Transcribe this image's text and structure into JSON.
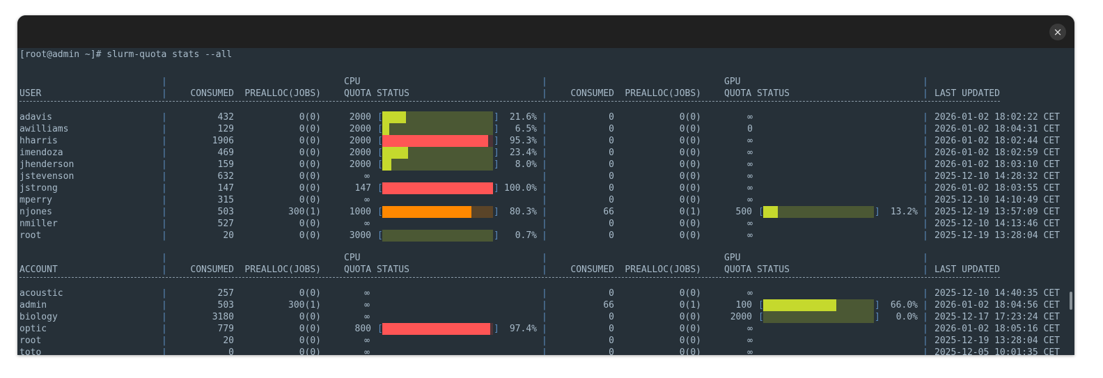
{
  "window": {
    "close_icon": "close-icon",
    "close_label": "×"
  },
  "prompt": "[root@admin ~]# slurm-quota stats --all",
  "colors": {
    "background": "#263038",
    "text": "#a9bccb",
    "pipe": "#5b8bbd",
    "ok_fill": "#c5d92d",
    "ok_empty": "#4b5834",
    "crit_fill": "#ff5555",
    "crit_empty": "#4e3438",
    "warn_fill": "#ff8800",
    "warn_empty": "#5a4428"
  },
  "headers": {
    "cpu": "CPU",
    "gpu": "GPU",
    "consumed": "CONSUMED",
    "prealloc": "PREALLOC(JOBS)",
    "quota_status": "QUOTA STATUS",
    "last_updated": "LAST UPDATED",
    "pipe": "|"
  },
  "sections": [
    {
      "title": "USER",
      "rows": [
        {
          "name": "adavis",
          "cpu_consumed": "432",
          "cpu_prealloc": "0(0)",
          "cpu_quota": "2000",
          "cpu_pct": "21.6%",
          "cpu_level": "ok",
          "gpu_consumed": "0",
          "gpu_prealloc": "0(0)",
          "gpu_quota": "∞",
          "updated": "2026-01-02 18:02:22 CET"
        },
        {
          "name": "awilliams",
          "cpu_consumed": "129",
          "cpu_prealloc": "0(0)",
          "cpu_quota": "2000",
          "cpu_pct": "6.5%",
          "cpu_level": "ok",
          "gpu_consumed": "0",
          "gpu_prealloc": "0(0)",
          "gpu_quota": "0",
          "updated": "2026-01-02 18:04:31 CET"
        },
        {
          "name": "hharris",
          "cpu_consumed": "1906",
          "cpu_prealloc": "0(0)",
          "cpu_quota": "2000",
          "cpu_pct": "95.3%",
          "cpu_level": "crit",
          "gpu_consumed": "0",
          "gpu_prealloc": "0(0)",
          "gpu_quota": "∞",
          "updated": "2026-01-02 18:02:44 CET"
        },
        {
          "name": "imendoza",
          "cpu_consumed": "469",
          "cpu_prealloc": "0(0)",
          "cpu_quota": "2000",
          "cpu_pct": "23.4%",
          "cpu_level": "ok",
          "gpu_consumed": "0",
          "gpu_prealloc": "0(0)",
          "gpu_quota": "∞",
          "updated": "2026-01-02 18:02:59 CET"
        },
        {
          "name": "jhenderson",
          "cpu_consumed": "159",
          "cpu_prealloc": "0(0)",
          "cpu_quota": "2000",
          "cpu_pct": "8.0%",
          "cpu_level": "ok",
          "gpu_consumed": "0",
          "gpu_prealloc": "0(0)",
          "gpu_quota": "∞",
          "updated": "2026-01-02 18:03:10 CET"
        },
        {
          "name": "jstevenson",
          "cpu_consumed": "632",
          "cpu_prealloc": "0(0)",
          "cpu_quota": "∞",
          "gpu_consumed": "0",
          "gpu_prealloc": "0(0)",
          "gpu_quota": "∞",
          "updated": "2025-12-10 14:28:32 CET"
        },
        {
          "name": "jstrong",
          "cpu_consumed": "147",
          "cpu_prealloc": "0(0)",
          "cpu_quota": "147",
          "cpu_pct": "100.0%",
          "cpu_level": "crit",
          "gpu_consumed": "0",
          "gpu_prealloc": "0(0)",
          "gpu_quota": "∞",
          "updated": "2026-01-02 18:03:55 CET"
        },
        {
          "name": "mperry",
          "cpu_consumed": "315",
          "cpu_prealloc": "0(0)",
          "cpu_quota": "∞",
          "gpu_consumed": "0",
          "gpu_prealloc": "0(0)",
          "gpu_quota": "∞",
          "updated": "2025-12-10 14:10:49 CET"
        },
        {
          "name": "njones",
          "cpu_consumed": "503",
          "cpu_prealloc": "300(1)",
          "cpu_quota": "1000",
          "cpu_pct": "80.3%",
          "cpu_level": "warn",
          "gpu_consumed": "66",
          "gpu_prealloc": "0(1)",
          "gpu_quota": "500",
          "gpu_pct": "13.2%",
          "gpu_level": "ok",
          "updated": "2025-12-19 13:57:09 CET"
        },
        {
          "name": "nmiller",
          "cpu_consumed": "527",
          "cpu_prealloc": "0(0)",
          "cpu_quota": "∞",
          "gpu_consumed": "0",
          "gpu_prealloc": "0(0)",
          "gpu_quota": "∞",
          "updated": "2025-12-10 14:13:46 CET"
        },
        {
          "name": "root",
          "cpu_consumed": "20",
          "cpu_prealloc": "0(0)",
          "cpu_quota": "3000",
          "cpu_pct": "0.7%",
          "cpu_level": "ok",
          "gpu_consumed": "0",
          "gpu_prealloc": "0(0)",
          "gpu_quota": "∞",
          "updated": "2025-12-19 13:28:04 CET"
        }
      ]
    },
    {
      "title": "ACCOUNT",
      "rows": [
        {
          "name": "acoustic",
          "cpu_consumed": "257",
          "cpu_prealloc": "0(0)",
          "cpu_quota": "∞",
          "gpu_consumed": "0",
          "gpu_prealloc": "0(0)",
          "gpu_quota": "∞",
          "updated": "2025-12-10 14:40:35 CET"
        },
        {
          "name": "admin",
          "cpu_consumed": "503",
          "cpu_prealloc": "300(1)",
          "cpu_quota": "∞",
          "gpu_consumed": "66",
          "gpu_prealloc": "0(1)",
          "gpu_quota": "100",
          "gpu_pct": "66.0%",
          "gpu_level": "ok",
          "updated": "2026-01-02 18:04:56 CET"
        },
        {
          "name": "biology",
          "cpu_consumed": "3180",
          "cpu_prealloc": "0(0)",
          "cpu_quota": "∞",
          "gpu_consumed": "0",
          "gpu_prealloc": "0(0)",
          "gpu_quota": "2000",
          "gpu_pct": "0.0%",
          "gpu_level": "ok",
          "updated": "2025-12-17 17:23:24 CET"
        },
        {
          "name": "optic",
          "cpu_consumed": "779",
          "cpu_prealloc": "0(0)",
          "cpu_quota": "800",
          "cpu_pct": "97.4%",
          "cpu_level": "crit",
          "gpu_consumed": "0",
          "gpu_prealloc": "0(0)",
          "gpu_quota": "∞",
          "updated": "2026-01-02 18:05:16 CET"
        },
        {
          "name": "root",
          "cpu_consumed": "20",
          "cpu_prealloc": "0(0)",
          "cpu_quota": "∞",
          "gpu_consumed": "0",
          "gpu_prealloc": "0(0)",
          "gpu_quota": "∞",
          "updated": "2025-12-19 13:28:04 CET"
        },
        {
          "name": "toto",
          "cpu_consumed": "0",
          "cpu_prealloc": "0(0)",
          "cpu_quota": "∞",
          "gpu_consumed": "0",
          "gpu_prealloc": "0(0)",
          "gpu_quota": "∞",
          "updated": "2025-12-05 10:01:35 CET"
        }
      ]
    }
  ]
}
